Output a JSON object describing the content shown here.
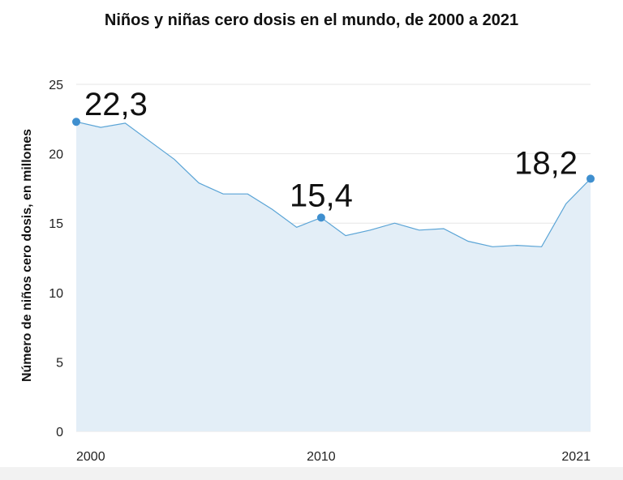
{
  "chart_data": {
    "type": "area",
    "title": "Niños y niñas cero dosis en el mundo, de 2000 a 2021",
    "ylabel": "Número de niños  cero dosis, en millones",
    "xlabel": "",
    "x": [
      2000,
      2001,
      2002,
      2003,
      2004,
      2005,
      2006,
      2007,
      2008,
      2009,
      2010,
      2011,
      2012,
      2013,
      2014,
      2015,
      2016,
      2017,
      2018,
      2019,
      2020,
      2021
    ],
    "values": [
      22.3,
      21.9,
      22.2,
      20.9,
      19.6,
      17.9,
      17.1,
      17.1,
      16.0,
      14.7,
      15.4,
      14.1,
      14.5,
      15.0,
      14.5,
      14.6,
      13.7,
      13.3,
      13.4,
      13.3,
      16.4,
      18.2
    ],
    "ylim": [
      0,
      25
    ],
    "xlim": [
      2000,
      2021
    ],
    "yticks": [
      "0",
      "5",
      "10",
      "15",
      "20",
      "25"
    ],
    "xticks": [
      {
        "x": 2000,
        "label": "2000"
      },
      {
        "x": 2010,
        "label": "2010"
      },
      {
        "x": 2021,
        "label": "2021"
      }
    ],
    "annotations": [
      {
        "x": 2000,
        "y": 22.3,
        "label": "22,3"
      },
      {
        "x": 2010,
        "y": 15.4,
        "label": "15,4"
      },
      {
        "x": 2021,
        "y": 18.2,
        "label": "18,2"
      }
    ],
    "grid": true,
    "colors": {
      "line": "#5aa4d6",
      "fill": "#e3eef7",
      "marker": "#3f8fcf",
      "grid": "#e6e6e6"
    }
  }
}
